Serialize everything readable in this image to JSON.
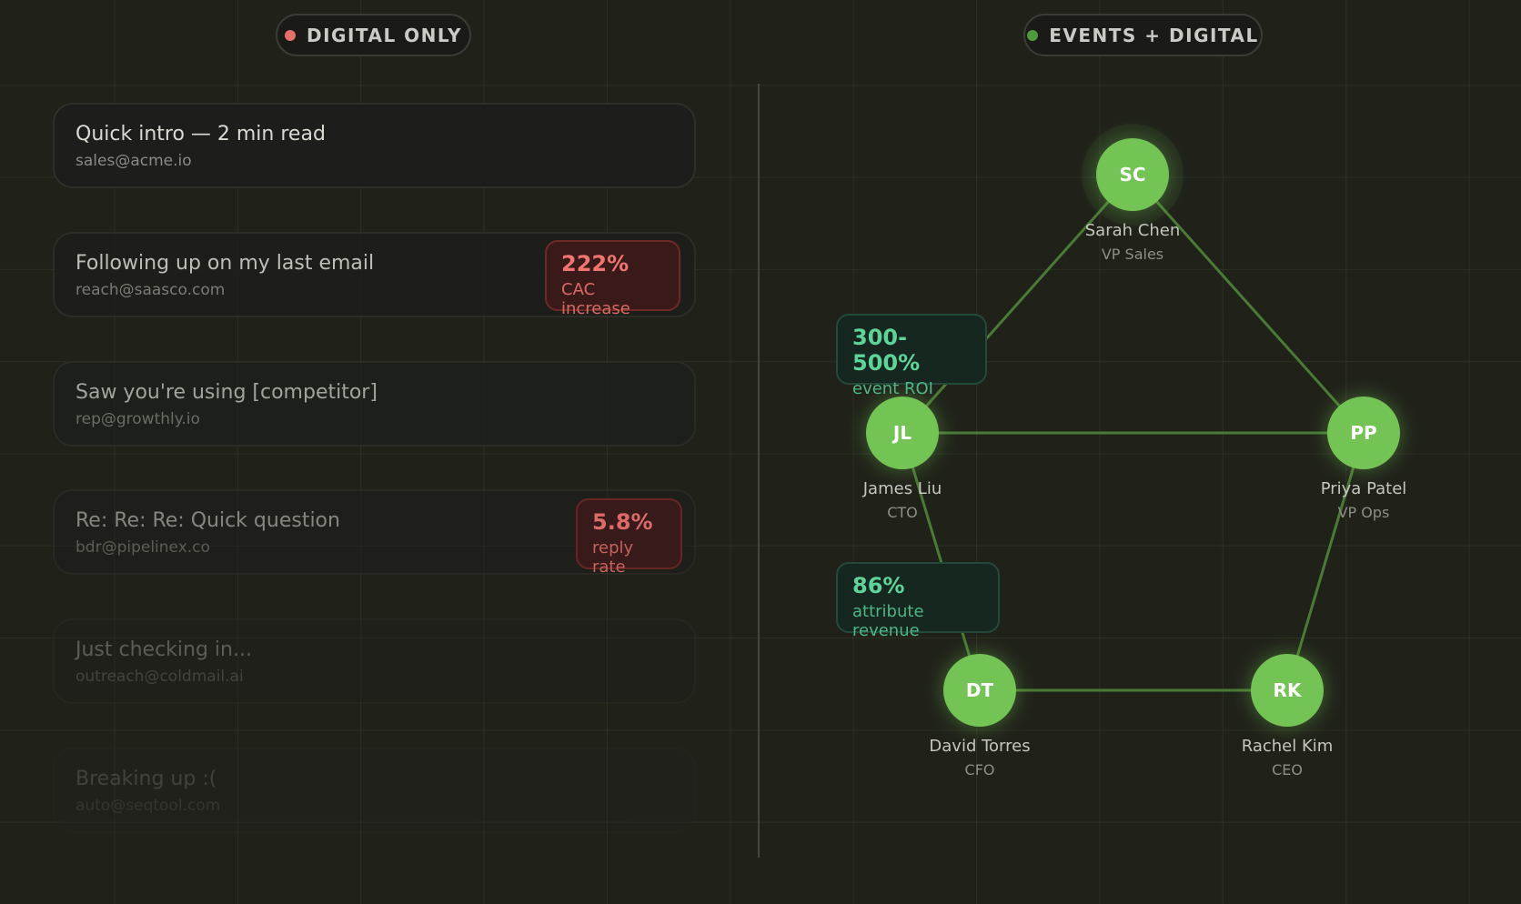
{
  "left_panel": {
    "label": "DIGITAL ONLY",
    "emails": [
      {
        "subject": "Quick intro — 2 min read",
        "sender": "sales@acme.io"
      },
      {
        "subject": "Following up on my last email",
        "sender": "reach@saasco.com"
      },
      {
        "subject": "Saw you're using [competitor]",
        "sender": "rep@growthly.io"
      },
      {
        "subject": "Re: Re: Re: Quick question",
        "sender": "bdr@pipelinex.co"
      },
      {
        "subject": "Just checking in...",
        "sender": "outreach@coldmail.ai"
      },
      {
        "subject": "Breaking up :(",
        "sender": "auto@seqtool.com"
      }
    ],
    "stats": [
      {
        "value": "222%",
        "label": "CAC increase"
      },
      {
        "value": "5.8%",
        "label": "reply rate"
      }
    ]
  },
  "right_panel": {
    "label": "EVENTS + DIGITAL",
    "nodes": [
      {
        "initials": "SC",
        "name": "Sarah Chen",
        "role": "VP Sales"
      },
      {
        "initials": "JL",
        "name": "James Liu",
        "role": "CTO"
      },
      {
        "initials": "PP",
        "name": "Priya Patel",
        "role": "VP Ops"
      },
      {
        "initials": "DT",
        "name": "David Torres",
        "role": "CFO"
      },
      {
        "initials": "RK",
        "name": "Rachel Kim",
        "role": "CEO"
      }
    ],
    "stats": [
      {
        "value": "300-500%",
        "label": "event ROI"
      },
      {
        "value": "86%",
        "label": "attribute revenue"
      }
    ]
  }
}
